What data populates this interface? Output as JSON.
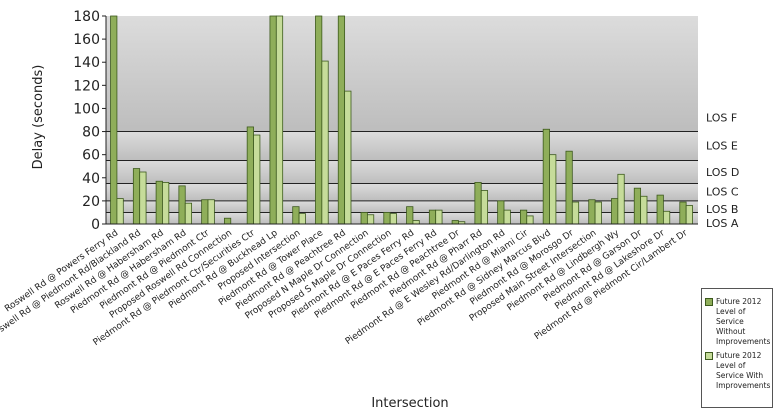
{
  "chart_data": {
    "type": "bar",
    "title": "",
    "xlabel": "Intersection",
    "ylabel": "Delay (seconds)",
    "ylim": [
      0,
      180
    ],
    "yticks": [
      0,
      20,
      40,
      60,
      80,
      100,
      120,
      140,
      160,
      180
    ],
    "grid": false,
    "legend_position": "right",
    "categories": [
      "Roswell Rd @ Powers Ferry Rd",
      "Roswell Rd @ Piedmont Rd/Blackland Rd",
      "Roswell Rd @ Habersham Rd",
      "Piedmont Rd @ Habersham Rd",
      "Piedmont Rd @ Piedmont Ctr",
      "Proposed Roswell Rd Connection",
      "Piedmont Rd @ Piedmont Ctr/Securities Ctr",
      "Piedmont Rd @ Buckhead Lp",
      "Proposed Intersection",
      "Piedmont Rd @ Tower Place",
      "Piedmont Rd @ Peachtree Rd",
      "Proposed N Maple Dr Connection",
      "Proposed S Maple Dr Connection",
      "Piedmont Rd @ E Paces Ferry Rd",
      "Piedmont Rd @ E Paces Ferry Rd",
      "Piedmont Rd @ Peachtree Dr",
      "Piedmont Rd @ Pharr Rd",
      "Piedmont Rd @ E Wesley Rd/Darlington Rd",
      "Piedmont Rd @ Miami Cir",
      "Piedmont Rd @ Sidney Marcus Blvd",
      "Piedmont Rd @ Morosgo Dr",
      "Proposed Main Street Intersection",
      "Piedmont Rd @ Lindbergh Wy",
      "Piedmont Rd @ Garson Dr",
      "Piedmont Rd @ Lakeshore Dr",
      "Piedmont Rd @ Piedmont Cir/Lambert Dr"
    ],
    "series": [
      {
        "name": "Future 2012 Level of Service Without Improvements",
        "color": "#8fae5a",
        "values": [
          180,
          48,
          37,
          33,
          21,
          5,
          84,
          180,
          15,
          180,
          180,
          10,
          10,
          15,
          12,
          3,
          36,
          20,
          12,
          82,
          63,
          21,
          22,
          31,
          25,
          19
        ]
      },
      {
        "name": "Future 2012 Level of Service With Improvements",
        "color": "#c6dc9a",
        "values": [
          22,
          45,
          36,
          18,
          21,
          0,
          77,
          180,
          9,
          141,
          115,
          8,
          9,
          3,
          12,
          2,
          29,
          12,
          7,
          60,
          19,
          19,
          43,
          24,
          11,
          16
        ]
      }
    ],
    "reference_lines": [
      {
        "label": "LOS F",
        "value": 80
      },
      {
        "label": "LOS E",
        "value": 55
      },
      {
        "label": "LOS D",
        "value": 35
      },
      {
        "label": "LOS C",
        "value": 20
      },
      {
        "label": "LOS B",
        "value": 10
      },
      {
        "label": "LOS A",
        "value": 0
      }
    ],
    "los_labels": [
      {
        "label": "LOS F",
        "y": 92
      },
      {
        "label": "LOS E",
        "y": 68
      },
      {
        "label": "LOS D",
        "y": 45
      },
      {
        "label": "LOS C",
        "y": 28
      },
      {
        "label": "LOS B",
        "y": 13
      },
      {
        "label": "LOS A",
        "y": 1
      }
    ]
  },
  "legend": {
    "items": [
      {
        "label": "Future 2012 Level of Service Without Improvements",
        "color": "#8fae5a"
      },
      {
        "label": "Future 2012 Level of Service With Improvements",
        "color": "#c6dc9a"
      }
    ]
  }
}
